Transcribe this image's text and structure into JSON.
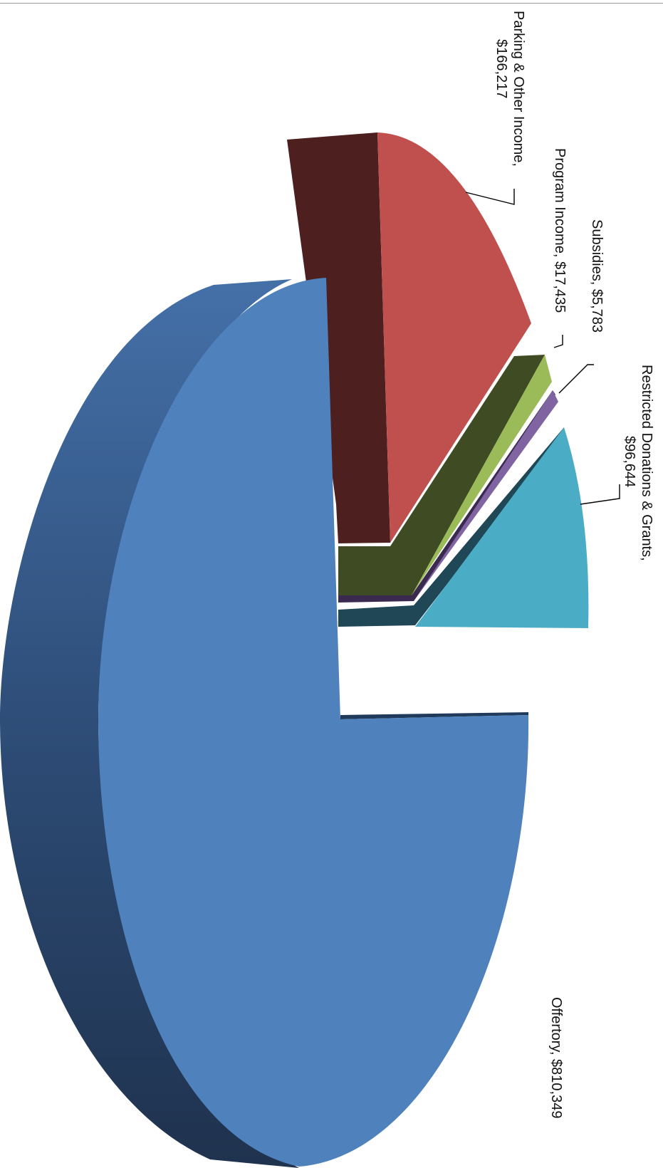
{
  "chart_data": {
    "type": "pie",
    "style": "3d-exploded",
    "orientation": "rotated-90-clockwise",
    "title": "",
    "legend": "none",
    "data_labels": "category-and-value",
    "slices": [
      {
        "name": "Offertory",
        "value": 810349,
        "label_lines": [
          "Offertory, $810,349"
        ],
        "color": "#4f81bd",
        "side_color": "#2c4a73"
      },
      {
        "name": "Restricted Donations & Grants",
        "value": 96644,
        "label_lines": [
          "Restricted Donations & Grants,",
          "$96,644"
        ],
        "color": "#4bacc6",
        "side_color": "#1f4756"
      },
      {
        "name": "Subsidies",
        "value": 5783,
        "label_lines": [
          "Subsidies, $5,783"
        ],
        "color": "#8064a2",
        "side_color": "#3b2a50"
      },
      {
        "name": "Program Income",
        "value": 17435,
        "label_lines": [
          "Program Income, $17,435"
        ],
        "color": "#9bbb59",
        "side_color": "#3f4b22"
      },
      {
        "name": "Parking & Other Income",
        "value": 166217,
        "label_lines": [
          "Parking & Other Income,",
          "$166,217"
        ],
        "color": "#c0504d",
        "side_color": "#4d1f1e"
      }
    ]
  }
}
